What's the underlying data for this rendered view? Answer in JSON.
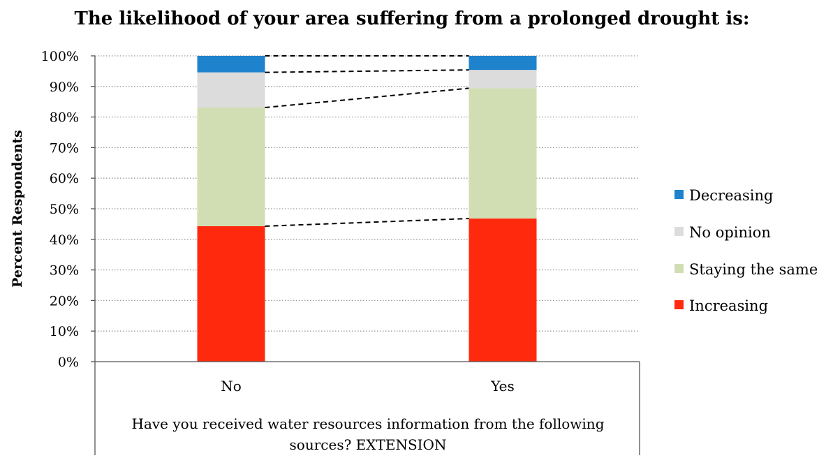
{
  "chart_data": {
    "type": "bar",
    "stacked": true,
    "percent": true,
    "title": "The likelihood of your area suffering from a prolonged drought is:",
    "ylabel": "Percent Respondents",
    "xlabel_lines": [
      "Have you received water resources information from the following",
      "sources? EXTENSION"
    ],
    "categories": [
      "No",
      "Yes"
    ],
    "ylim": [
      0,
      100
    ],
    "yticks": [
      "0%",
      "10%",
      "20%",
      "30%",
      "40%",
      "50%",
      "60%",
      "70%",
      "80%",
      "90%",
      "100%"
    ],
    "grid": true,
    "legend_position": "right",
    "series": [
      {
        "name": "Increasing",
        "color": "#ff2a0d",
        "values": [
          44.3,
          46.8
        ]
      },
      {
        "name": "Staying the same",
        "color": "#d1deb3",
        "values": [
          38.8,
          42.6
        ]
      },
      {
        "name": "No opinion",
        "color": "#dcdcdc",
        "values": [
          11.5,
          6.0
        ]
      },
      {
        "name": "Decreasing",
        "color": "#1e83cc",
        "values": [
          5.4,
          4.6
        ]
      }
    ],
    "legend_order": [
      "Decreasing",
      "No opinion",
      "Staying the same",
      "Increasing"
    ],
    "connector_lines": "dashed"
  }
}
